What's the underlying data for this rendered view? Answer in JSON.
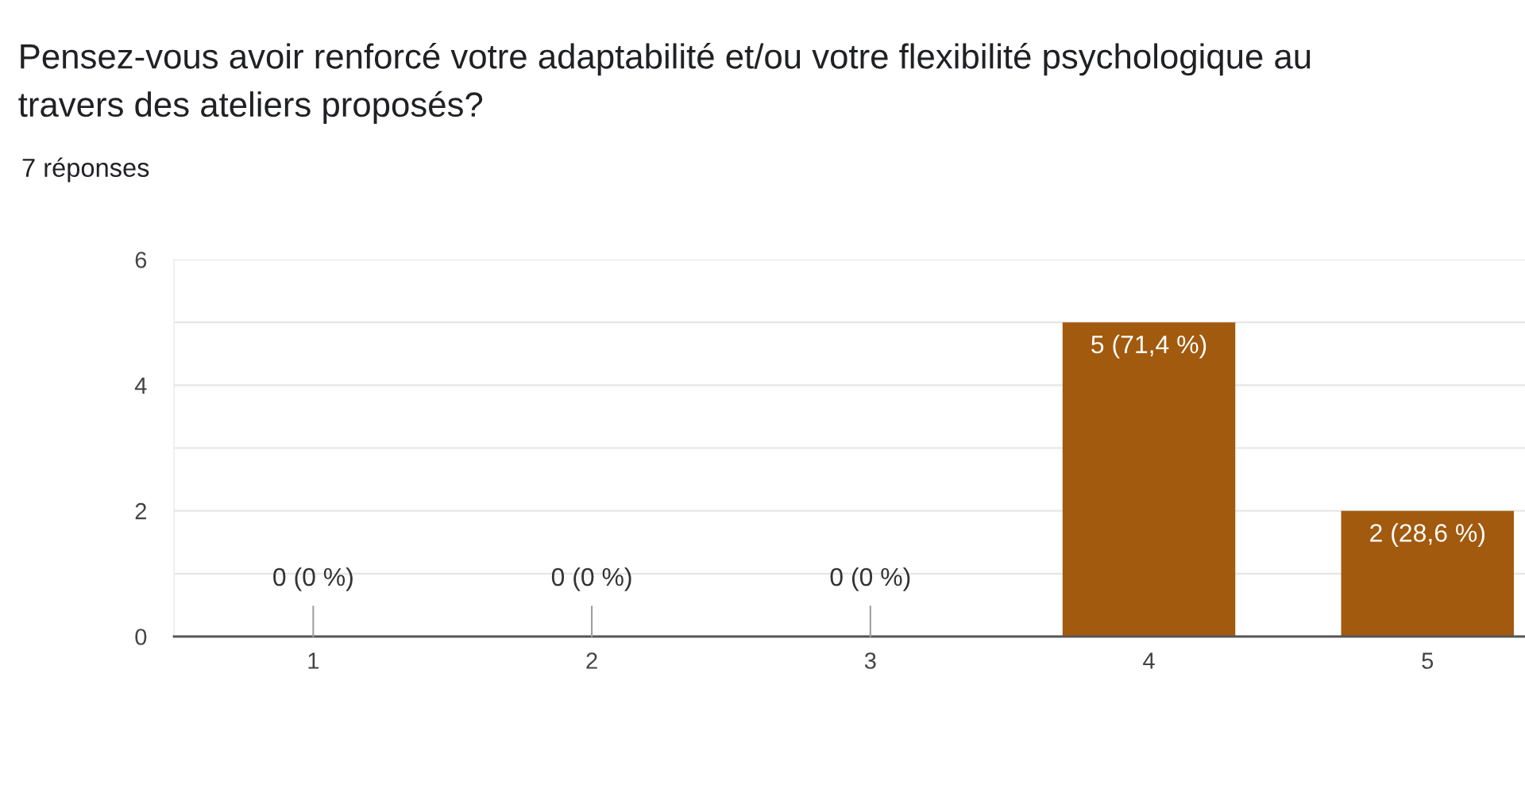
{
  "chart_data": {
    "type": "bar",
    "title": "Pensez-vous avoir renforcé votre adaptabilité et/ou votre flexibilité psychologique au travers des ateliers proposés?",
    "subtitle": "7 réponses",
    "categories": [
      "1",
      "2",
      "3",
      "4",
      "5"
    ],
    "values": [
      0,
      0,
      0,
      5,
      2
    ],
    "color": "#a25a0e",
    "value_labels": [
      "0 (0 %)",
      "0 (0 %)",
      "0 (0 %)",
      "5 (71,4 %)",
      "2 (28,6 %)"
    ],
    "ylim": [
      0,
      6
    ],
    "yticks": [
      0,
      {
        "value": 1,
        "label": null
      },
      2,
      {
        "value": 3,
        "label": null
      },
      4,
      {
        "value": 5,
        "label": null
      },
      6
    ],
    "grid": "y"
  }
}
